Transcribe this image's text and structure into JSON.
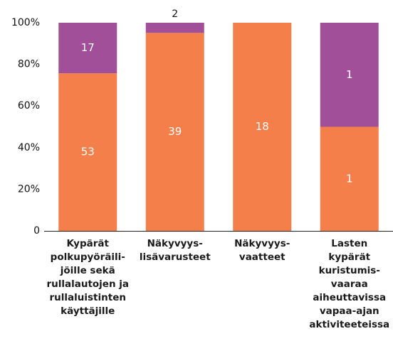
{
  "chart_data": {
    "type": "stacked_percent_bar",
    "categories": [
      [
        "Kypärät",
        "polkupyöräili-",
        "jöille sekä",
        "rullalautojen ja",
        "rullaluistinten",
        "käyttäjille"
      ],
      [
        "Näkyvyys-",
        "lisävarusteet"
      ],
      [
        "Näkyvyys-",
        "vaatteet"
      ],
      [
        "Lasten",
        "kypärät",
        "kuristumis-",
        "vaaraa",
        "aiheuttavissa",
        "vapaa-ajan",
        "aktiviteeteissa"
      ]
    ],
    "series": [
      {
        "color": "#f47f4a",
        "values": [
          53,
          39,
          18,
          1
        ]
      },
      {
        "color": "#a04f98",
        "values": [
          17,
          2,
          0,
          1
        ]
      }
    ],
    "ylim": [
      0,
      100
    ],
    "yticks": [
      0,
      {
        "value": 20,
        "label": "20%"
      },
      {
        "value": 40,
        "label": "40%"
      },
      {
        "value": 60,
        "label": "60%"
      },
      {
        "value": 80,
        "label": "80%"
      },
      {
        "value": 100,
        "label": "100%"
      }
    ],
    "grid": false
  }
}
